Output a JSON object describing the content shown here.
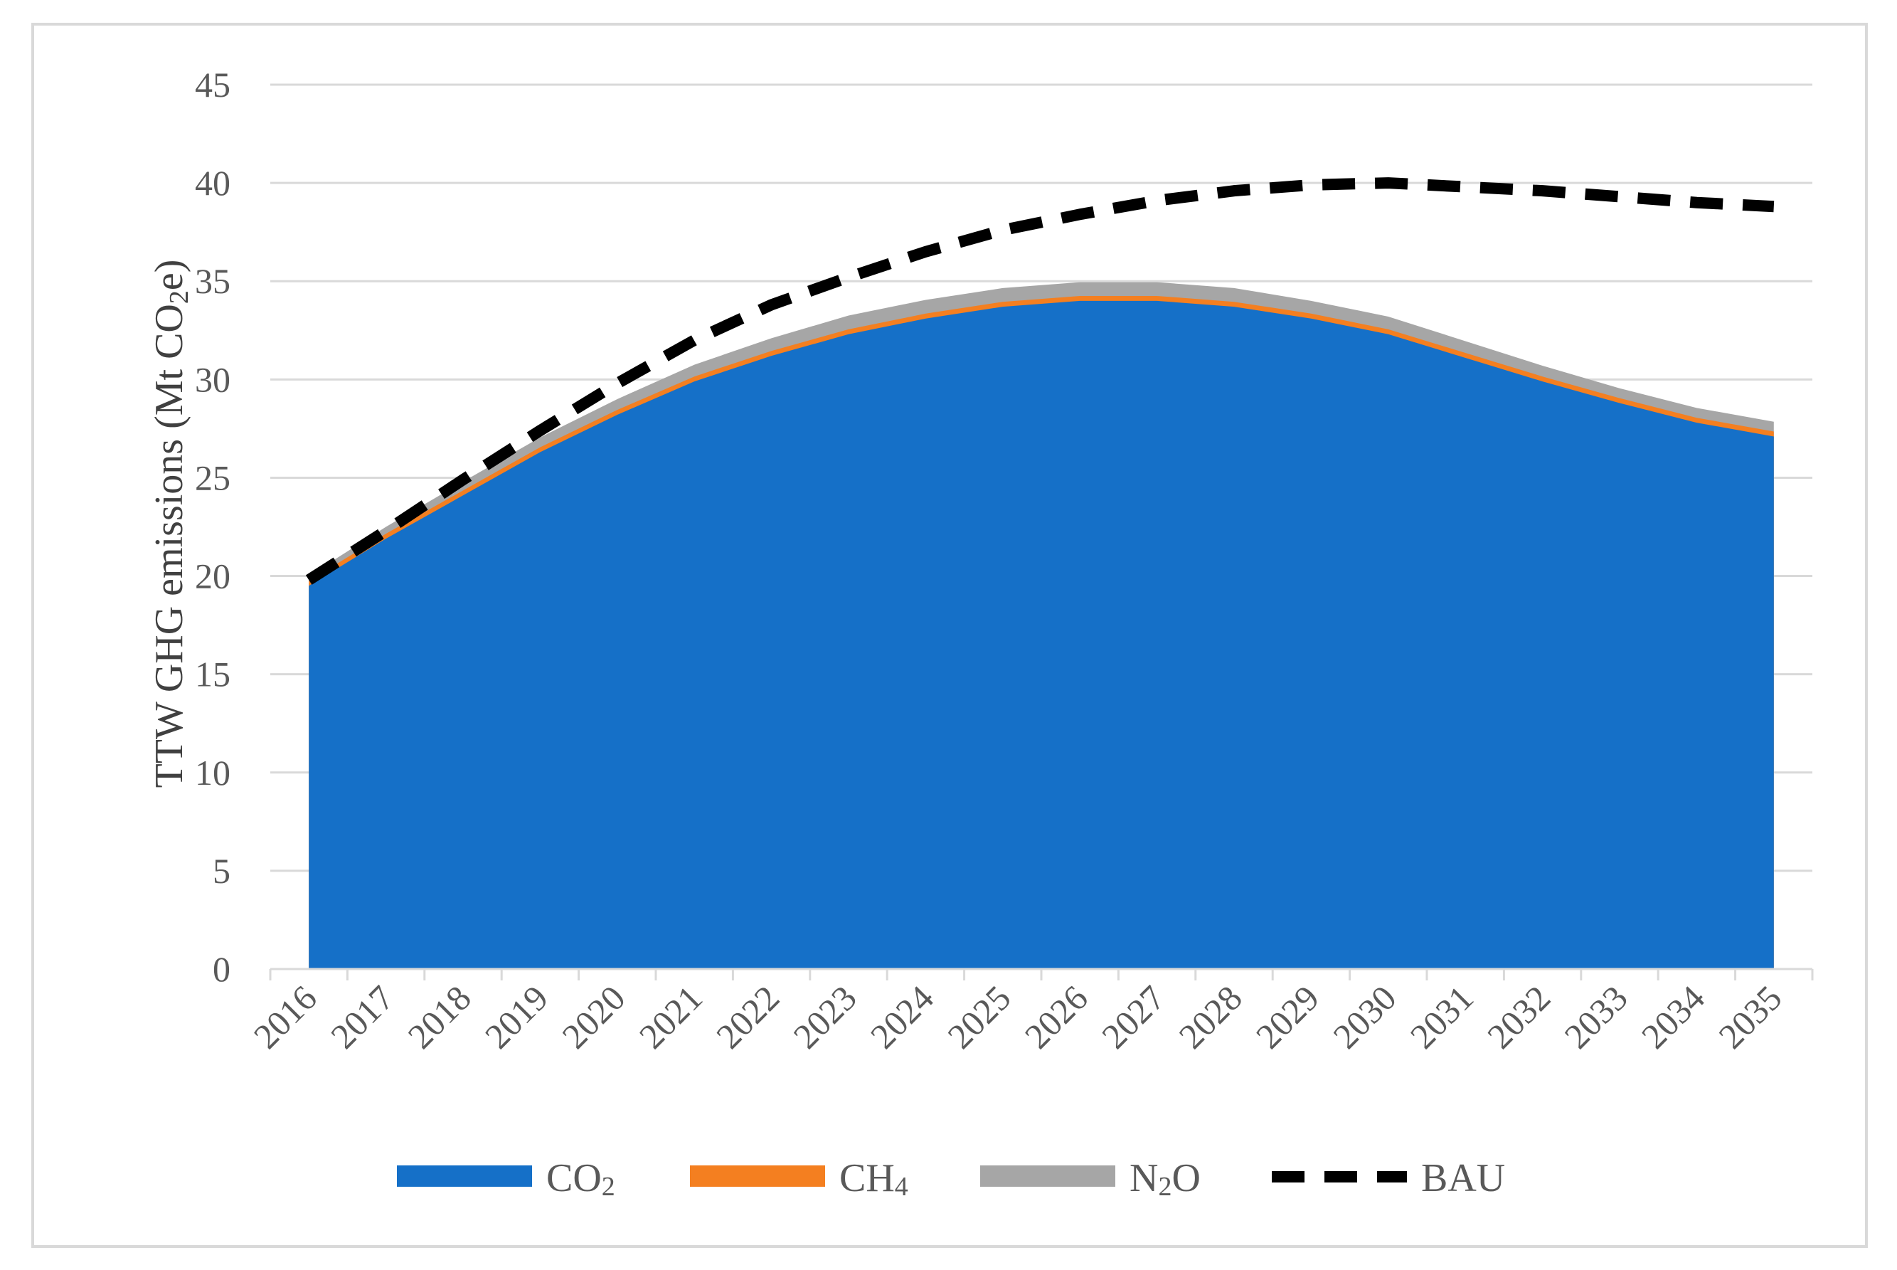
{
  "chart_data": {
    "type": "area",
    "stacked": true,
    "title": "",
    "xlabel": "",
    "ylabel_prefix": "TTW GHG emissions (Mt CO",
    "ylabel_sub": "2",
    "ylabel_suffix": "e)",
    "ylim": [
      0,
      45
    ],
    "yticks": [
      0,
      5,
      10,
      15,
      20,
      25,
      30,
      35,
      40,
      45
    ],
    "categories": [
      "2016",
      "2017",
      "2018",
      "2019",
      "2020",
      "2021",
      "2022",
      "2023",
      "2024",
      "2025",
      "2026",
      "2027",
      "2028",
      "2029",
      "2030",
      "2031",
      "2032",
      "2033",
      "2034",
      "2035"
    ],
    "grid": true,
    "legend_position": "bottom",
    "series": [
      {
        "name": "CO",
        "sub": "2",
        "kind": "area",
        "color": "#1570c8",
        "values": [
          19.5,
          21.9,
          24.1,
          26.3,
          28.2,
          29.9,
          31.2,
          32.3,
          33.1,
          33.7,
          34.0,
          34.0,
          33.7,
          33.1,
          32.3,
          31.1,
          29.9,
          28.8,
          27.8,
          27.1
        ]
      },
      {
        "name": "CH",
        "sub": "4",
        "kind": "area",
        "color": "#f47f20",
        "values": [
          0.25,
          0.25,
          0.25,
          0.25,
          0.25,
          0.25,
          0.25,
          0.25,
          0.25,
          0.25,
          0.25,
          0.25,
          0.25,
          0.25,
          0.25,
          0.25,
          0.25,
          0.25,
          0.25,
          0.25
        ]
      },
      {
        "name": "N",
        "sub": "2",
        "name_suffix": "O",
        "kind": "area",
        "color": "#a6a6a6",
        "values": [
          0.25,
          0.35,
          0.45,
          0.5,
          0.55,
          0.6,
          0.65,
          0.7,
          0.7,
          0.7,
          0.7,
          0.7,
          0.7,
          0.65,
          0.65,
          0.6,
          0.55,
          0.5,
          0.5,
          0.5
        ]
      },
      {
        "name": "BAU",
        "sub": "",
        "kind": "line",
        "dashed": true,
        "color": "#000000",
        "values": [
          19.8,
          22.3,
          24.9,
          27.4,
          29.8,
          32.0,
          33.8,
          35.2,
          36.5,
          37.6,
          38.4,
          39.1,
          39.6,
          39.9,
          40.0,
          39.8,
          39.6,
          39.3,
          39.0,
          38.8
        ]
      }
    ]
  }
}
